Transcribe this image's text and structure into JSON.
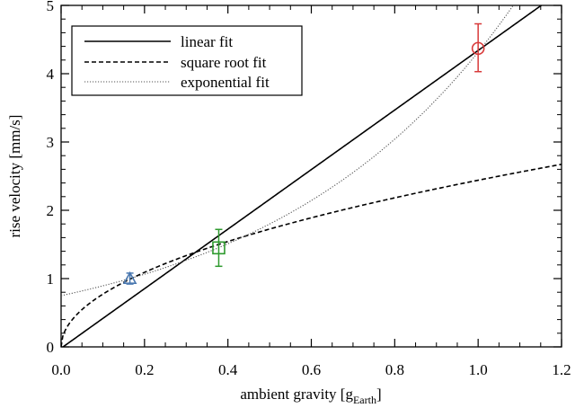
{
  "chart_data": {
    "type": "scatter",
    "xlabel": {
      "main": "ambient gravity [g",
      "sub": "Earth",
      "end": "]"
    },
    "ylabel": "rise velocity [mm/s]",
    "xlim": [
      0.0,
      1.2
    ],
    "ylim": [
      0,
      5
    ],
    "xticks": [
      "0.0",
      "0.2",
      "0.4",
      "0.6",
      "0.8",
      "1.0",
      "1.2"
    ],
    "yticks": [
      "0",
      "1",
      "2",
      "3",
      "4",
      "5"
    ],
    "grid": false,
    "legend_position": "top-left",
    "legend": [
      {
        "label": "linear fit",
        "style": "solid"
      },
      {
        "label": "square root fit",
        "style": "dashed"
      },
      {
        "label": "exponential fit",
        "style": "dotted"
      }
    ],
    "fits": {
      "linear": {
        "slope": 4.36,
        "intercept": -0.02
      },
      "square_root": {
        "coefficient": 2.44
      },
      "exponential": {
        "a": 0.75,
        "b": 1.75
      }
    },
    "points": [
      {
        "x": 0.165,
        "y": 1.0,
        "err_lo": 0.92,
        "err_hi": 1.08,
        "marker": "triangle",
        "color": "#4a78b0"
      },
      {
        "x": 0.378,
        "y": 1.45,
        "err_lo": 1.18,
        "err_hi": 1.72,
        "marker": "square",
        "color": "#2e9a2e"
      },
      {
        "x": 1.0,
        "y": 4.37,
        "err_lo": 4.03,
        "err_hi": 4.73,
        "marker": "circle",
        "color": "#d83a3a"
      }
    ]
  }
}
